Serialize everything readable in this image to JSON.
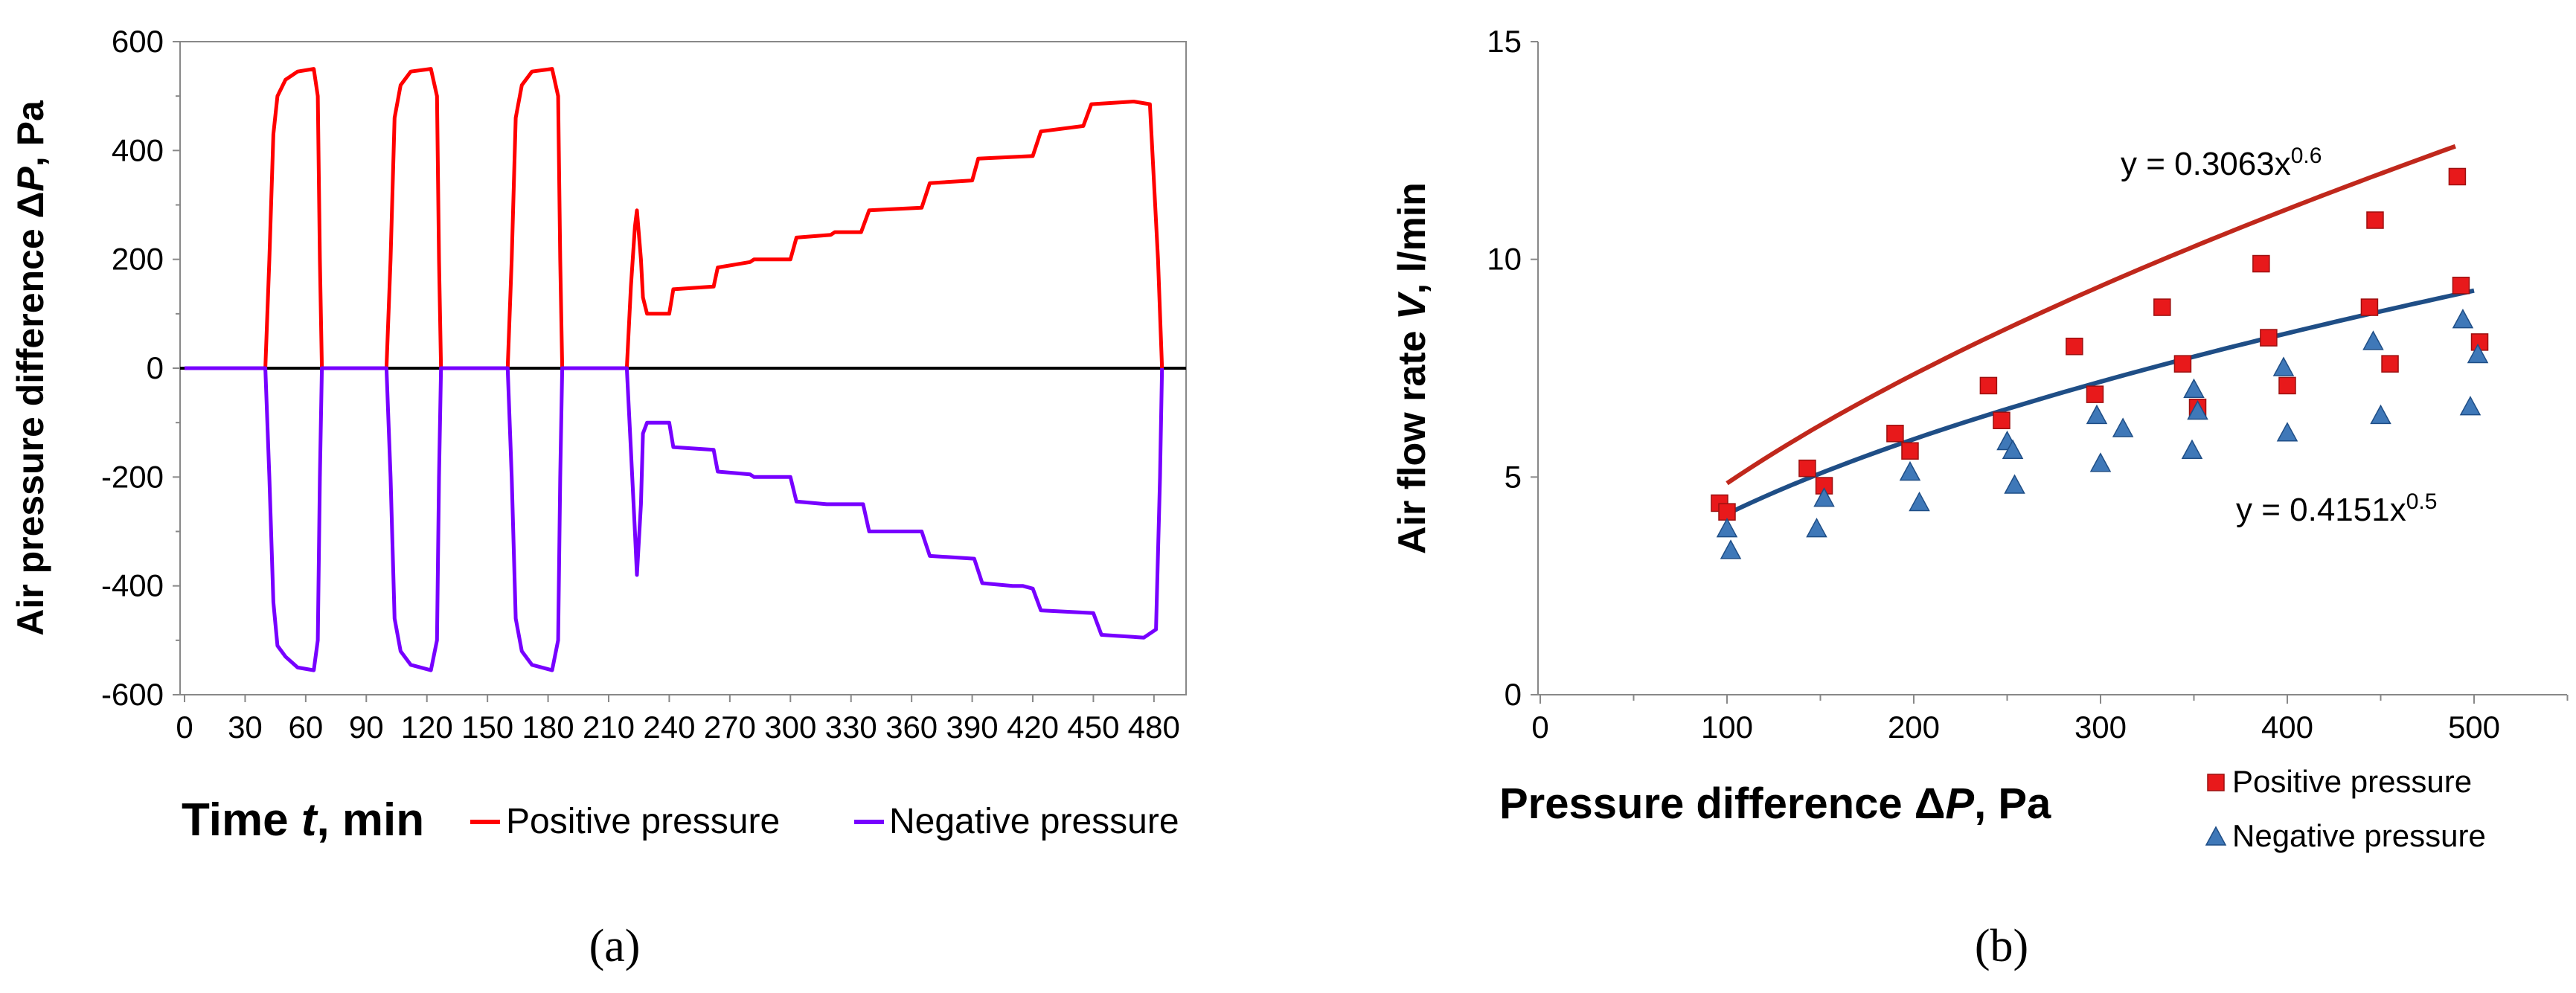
{
  "chart_data": [
    {
      "type": "line",
      "panel": "(a)",
      "caption": "(a)",
      "xlabel_main": "Time ",
      "xlabel_var": "t",
      "xlabel_unit": ", min",
      "ylabel_main": "Air pressure difference Δ",
      "ylabel_var": "P",
      "ylabel_unit": ", Pa",
      "xlim": [
        0,
        490
      ],
      "ylim": [
        -600,
        600
      ],
      "xticks": [
        0,
        30,
        60,
        90,
        120,
        150,
        180,
        210,
        240,
        270,
        300,
        330,
        360,
        390,
        420,
        450,
        480
      ],
      "xtick_labels": [
        "0",
        "30",
        "60",
        "90",
        "120",
        "150",
        "180",
        "210",
        "240",
        "270",
        "300",
        "330",
        "360",
        "390",
        "420",
        "450",
        "480"
      ],
      "yticks": [
        -600,
        -400,
        -200,
        0,
        200,
        400,
        600
      ],
      "ytick_labels": [
        "-600",
        "-400",
        "-200",
        "0",
        "200",
        "400",
        "600"
      ],
      "series": [
        {
          "name": "Positive pressure",
          "color": "#ff0000",
          "points": [
            [
              0,
              0
            ],
            [
              40,
              0
            ],
            [
              42,
              200
            ],
            [
              44,
              430
            ],
            [
              46,
              500
            ],
            [
              50,
              530
            ],
            [
              56,
              545
            ],
            [
              64,
              550
            ],
            [
              66,
              500
            ],
            [
              67,
              200
            ],
            [
              68,
              0
            ],
            [
              100,
              0
            ],
            [
              102,
              200
            ],
            [
              104,
              460
            ],
            [
              107,
              520
            ],
            [
              112,
              545
            ],
            [
              122,
              550
            ],
            [
              125,
              500
            ],
            [
              126,
              200
            ],
            [
              127,
              0
            ],
            [
              160,
              0
            ],
            [
              162,
              200
            ],
            [
              164,
              460
            ],
            [
              167,
              520
            ],
            [
              172,
              545
            ],
            [
              182,
              550
            ],
            [
              185,
              500
            ],
            [
              186,
              200
            ],
            [
              187,
              0
            ],
            [
              219,
              0
            ],
            [
              221,
              150
            ],
            [
              223,
              260
            ],
            [
              224,
              290
            ],
            [
              226,
              200
            ],
            [
              227,
              130
            ],
            [
              229,
              100
            ],
            [
              240,
              100
            ],
            [
              242,
              145
            ],
            [
              262,
              150
            ],
            [
              264,
              185
            ],
            [
              280,
              195
            ],
            [
              282,
              200
            ],
            [
              300,
              200
            ],
            [
              303,
              240
            ],
            [
              320,
              245
            ],
            [
              322,
              250
            ],
            [
              335,
              250
            ],
            [
              339,
              290
            ],
            [
              365,
              295
            ],
            [
              369,
              340
            ],
            [
              390,
              345
            ],
            [
              393,
              385
            ],
            [
              420,
              390
            ],
            [
              424,
              435
            ],
            [
              445,
              445
            ],
            [
              449,
              485
            ],
            [
              470,
              490
            ],
            [
              478,
              485
            ],
            [
              482,
              200
            ],
            [
              484,
              0
            ]
          ]
        },
        {
          "name": "Negative pressure",
          "color": "#7700ff",
          "points": [
            [
              0,
              0
            ],
            [
              40,
              0
            ],
            [
              42,
              -200
            ],
            [
              44,
              -430
            ],
            [
              46,
              -510
            ],
            [
              50,
              -530
            ],
            [
              56,
              -550
            ],
            [
              64,
              -555
            ],
            [
              66,
              -500
            ],
            [
              67,
              -200
            ],
            [
              68,
              0
            ],
            [
              100,
              0
            ],
            [
              102,
              -200
            ],
            [
              104,
              -460
            ],
            [
              107,
              -520
            ],
            [
              112,
              -545
            ],
            [
              122,
              -555
            ],
            [
              125,
              -500
            ],
            [
              126,
              -200
            ],
            [
              127,
              0
            ],
            [
              160,
              0
            ],
            [
              162,
              -200
            ],
            [
              164,
              -460
            ],
            [
              167,
              -520
            ],
            [
              172,
              -545
            ],
            [
              182,
              -555
            ],
            [
              185,
              -500
            ],
            [
              186,
              -200
            ],
            [
              187,
              0
            ],
            [
              219,
              0
            ],
            [
              221,
              -150
            ],
            [
              223,
              -300
            ],
            [
              224,
              -380
            ],
            [
              226,
              -250
            ],
            [
              227,
              -120
            ],
            [
              229,
              -100
            ],
            [
              240,
              -100
            ],
            [
              242,
              -145
            ],
            [
              262,
              -150
            ],
            [
              264,
              -190
            ],
            [
              280,
              -195
            ],
            [
              282,
              -200
            ],
            [
              300,
              -200
            ],
            [
              303,
              -245
            ],
            [
              318,
              -250
            ],
            [
              336,
              -250
            ],
            [
              339,
              -300
            ],
            [
              365,
              -300
            ],
            [
              369,
              -345
            ],
            [
              391,
              -350
            ],
            [
              395,
              -395
            ],
            [
              410,
              -400
            ],
            [
              415,
              -400
            ],
            [
              420,
              -405
            ],
            [
              424,
              -445
            ],
            [
              450,
              -450
            ],
            [
              454,
              -490
            ],
            [
              475,
              -495
            ],
            [
              481,
              -480
            ],
            [
              483,
              -200
            ],
            [
              484,
              0
            ]
          ]
        }
      ],
      "legend": [
        "Positive pressure",
        "Negative pressure"
      ]
    },
    {
      "type": "scatter",
      "panel": "(b)",
      "caption": "(b)",
      "xlabel_main": "Pressure difference Δ",
      "xlabel_var": "P",
      "xlabel_unit": ", Pa",
      "ylabel_main": "Air flow rate ",
      "ylabel_var": "V",
      "ylabel_unit": ", l/min",
      "xlim": [
        0,
        550
      ],
      "ylim": [
        0,
        15
      ],
      "xticks": [
        0,
        100,
        200,
        300,
        400,
        500
      ],
      "xtick_labels": [
        "0",
        "100",
        "200",
        "300",
        "400",
        "500"
      ],
      "xminor": [
        50,
        150,
        250,
        350,
        450,
        550
      ],
      "yticks": [
        0,
        5,
        10,
        15
      ],
      "ytick_labels": [
        "0",
        "5",
        "10",
        "15"
      ],
      "series": [
        {
          "name": "Positive pressure",
          "marker": "square",
          "color": "#e8191b",
          "x": [
            96,
            100,
            143,
            152,
            190,
            198,
            240,
            247,
            286,
            297,
            333,
            344,
            352,
            386,
            390,
            400,
            444,
            447,
            455,
            491,
            493,
            503
          ],
          "y": [
            4.4,
            4.2,
            5.2,
            4.8,
            6.0,
            5.6,
            7.1,
            6.3,
            8.0,
            6.9,
            8.9,
            7.6,
            6.6,
            9.9,
            8.2,
            7.1,
            8.9,
            10.9,
            7.6,
            11.9,
            9.4,
            8.1
          ]
        },
        {
          "name": "Negative pressure",
          "marker": "triangle",
          "color": "#3f78b8",
          "x": [
            100,
            102,
            148,
            152,
            198,
            203,
            250,
            253,
            254,
            298,
            300,
            312,
            349,
            350,
            352,
            398,
            400,
            446,
            450,
            494,
            498,
            502
          ],
          "y": [
            3.8,
            3.3,
            3.8,
            4.5,
            5.1,
            4.4,
            5.8,
            5.6,
            4.8,
            6.4,
            5.3,
            6.1,
            5.6,
            7.0,
            6.5,
            7.5,
            6.0,
            8.1,
            6.4,
            8.6,
            6.6,
            7.8
          ]
        }
      ],
      "fits": [
        {
          "label_main": "y = 0.3063x",
          "label_exp": "0.6",
          "a": 0.3063,
          "b": 0.6,
          "x_from": 100,
          "x_to": 490,
          "color": "#c0281c"
        },
        {
          "label_main": "y = 0.4151x",
          "label_exp": "0.5",
          "a": 0.4151,
          "b": 0.5,
          "x_from": 100,
          "x_to": 500,
          "color": "#1f4e86"
        }
      ],
      "legend": [
        "Positive pressure",
        "Negative pressure"
      ]
    }
  ]
}
